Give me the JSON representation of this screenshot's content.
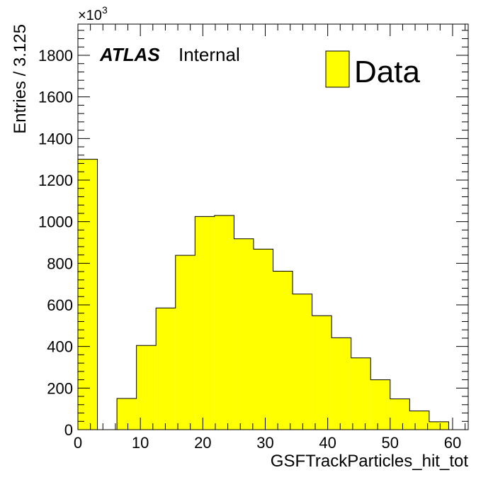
{
  "chart_data": {
    "type": "bar",
    "xlabel": "GSFTrackParticles_hit_tot",
    "ylabel": "Entries / 3.125",
    "scale_label": "×10",
    "scale_exponent": "3",
    "xlim": [
      0,
      62.5
    ],
    "ylim": [
      0,
      1950
    ],
    "x_ticks": [
      0,
      10,
      20,
      30,
      40,
      50,
      60
    ],
    "y_ticks": [
      0,
      200,
      400,
      600,
      800,
      1000,
      1200,
      1400,
      1600,
      1800
    ],
    "bin_width": 3.125,
    "bin_edges": [
      0,
      3.125,
      6.25,
      9.375,
      12.5,
      15.625,
      18.75,
      21.875,
      25,
      28.125,
      31.25,
      34.375,
      37.5,
      40.625,
      43.75,
      46.875,
      50,
      53.125,
      56.25,
      59.375,
      62.5
    ],
    "values": [
      1300,
      0,
      150,
      405,
      585,
      838,
      1025,
      1030,
      918,
      868,
      762,
      652,
      548,
      442,
      345,
      240,
      148,
      90,
      38,
      0
    ],
    "series": [
      {
        "name": "Data",
        "color": "#ffff00"
      }
    ],
    "grid": false,
    "legend_position": "top-right"
  },
  "annotations": {
    "atlas": "ATLAS",
    "internal": "Internal"
  }
}
